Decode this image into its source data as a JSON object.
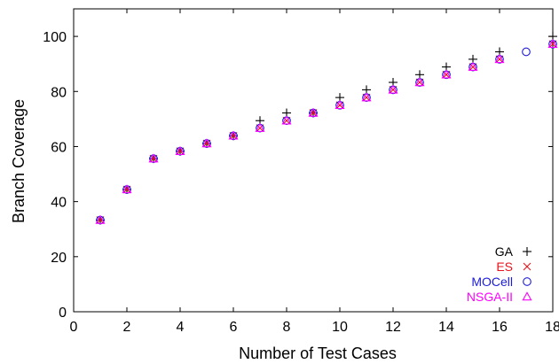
{
  "chart_data": {
    "type": "scatter",
    "xlabel": "Number of Test Cases",
    "ylabel": "Branch Coverage",
    "xlim": [
      0,
      18
    ],
    "ylim": [
      0,
      110
    ],
    "xticks": [
      0,
      2,
      4,
      6,
      8,
      10,
      12,
      14,
      16,
      18
    ],
    "yticks": [
      0,
      20,
      40,
      60,
      80,
      100
    ],
    "xtick_labels": [
      "0",
      "2",
      "4",
      "6",
      "8",
      "10",
      "12",
      "14",
      "16",
      "18"
    ],
    "ytick_labels": [
      "0",
      "20",
      "40",
      "60",
      "80",
      "100"
    ],
    "grid": false,
    "legend_position": "bottom-right",
    "series": [
      {
        "name": "GA",
        "marker": "plus",
        "color": "#000000",
        "x": [
          1,
          2,
          3,
          4,
          5,
          6,
          7,
          8,
          9,
          10,
          11,
          12,
          13,
          14,
          15,
          16,
          18
        ],
        "y": [
          33.3,
          44.4,
          55.6,
          58.3,
          61.1,
          63.9,
          69.4,
          72.2,
          72.2,
          77.8,
          80.6,
          83.3,
          86.1,
          88.9,
          91.7,
          94.4,
          100
        ]
      },
      {
        "name": "ES",
        "marker": "cross",
        "color": "#e8141c",
        "x": [
          1,
          2,
          3,
          4,
          5,
          6,
          7,
          8,
          9,
          10,
          11,
          12,
          13,
          14,
          15,
          16,
          18
        ],
        "y": [
          33.3,
          44.4,
          55.6,
          58.3,
          61.1,
          63.9,
          66.7,
          69.4,
          72.2,
          75.0,
          77.8,
          80.6,
          83.3,
          86.1,
          88.9,
          91.7,
          97.2
        ]
      },
      {
        "name": "MOCell",
        "marker": "circle",
        "color": "#1b1bd6",
        "x": [
          1,
          2,
          3,
          4,
          5,
          6,
          7,
          8,
          9,
          10,
          11,
          12,
          13,
          14,
          15,
          16,
          17,
          18
        ],
        "y": [
          33.3,
          44.4,
          55.6,
          58.3,
          61.1,
          63.9,
          66.7,
          69.4,
          72.2,
          75.0,
          77.8,
          80.6,
          83.3,
          86.1,
          88.9,
          91.7,
          94.4,
          97.2
        ]
      },
      {
        "name": "NSGA-II",
        "marker": "triangle",
        "color": "#ff00ff",
        "x": [
          1,
          2,
          3,
          4,
          5,
          6,
          7,
          8,
          9,
          10,
          11,
          12,
          13,
          14,
          15,
          16,
          18
        ],
        "y": [
          33.3,
          44.4,
          55.6,
          58.3,
          61.1,
          63.9,
          66.7,
          69.4,
          72.2,
          75.0,
          77.8,
          80.6,
          83.3,
          86.1,
          88.9,
          91.7,
          97.2
        ]
      }
    ]
  }
}
